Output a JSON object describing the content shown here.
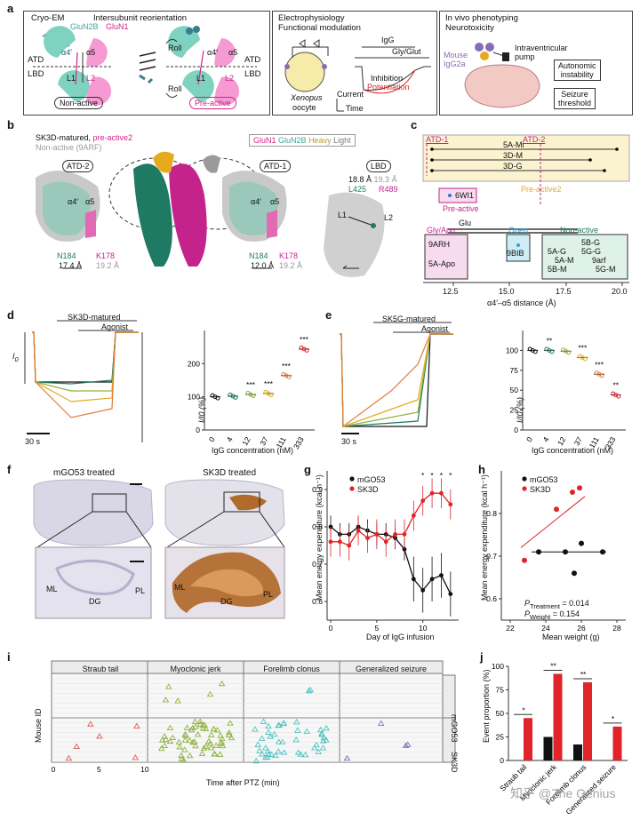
{
  "panel_labels": {
    "a": "a",
    "b": "b",
    "c": "c",
    "d": "d",
    "e": "e",
    "f": "f",
    "g": "g",
    "h": "h",
    "i": "i",
    "j": "j"
  },
  "panel_a": {
    "box1": {
      "title1": "Cryo-EM",
      "title2": "Intersubunit reorientation",
      "glun2b": "GluN2B",
      "glun1": "GluN1",
      "atd": "ATD",
      "lbd": "LBD",
      "alpha4": "α4′",
      "alpha5": "α5",
      "l1": "L1",
      "l2": "L2",
      "nonactive": "Non-active",
      "preactive": "Pre-active",
      "roll": "Roll"
    },
    "box2": {
      "title1": "Electrophysiology",
      "title2": "Functional modulation",
      "igg": "IgG",
      "glyglut": "Gly/Glut",
      "xenopus": "Xenopus",
      "oocyte": "oocyte",
      "inhibition": "Inhibition",
      "potentiation": "Potentiation",
      "current": "Current",
      "time": "Time"
    },
    "box3": {
      "title1": "In vivo phenotyping",
      "title2": "Neurotoxicity",
      "mouse": "Mouse",
      "igg2a": "IgG2a",
      "pump1": "Intraventricular",
      "pump2": "pump",
      "out1a": "Autonomic",
      "out1b": "instability",
      "out2a": "Seizure",
      "out2b": "threshold"
    }
  },
  "panel_b": {
    "legend1": "SK3D-matured,",
    "legend1b": "pre-active2",
    "legend2": "Non-active (9ARF)",
    "subunits": {
      "glun1": "GluN1",
      "glun2b": "GluN2B",
      "heavy": "Heavy",
      "light": "Light"
    },
    "atd2": "ATD-2",
    "atd1": "ATD-1",
    "lbd": "LBD",
    "alpha4": "α4′",
    "alpha5": "α5",
    "n184": "N184",
    "k178": "K178",
    "d1a": "17.4 Å",
    "d1b": "19.2 Å",
    "d2a": "12.0 Å",
    "d2b": "19.2 Å",
    "lbd_d1": "18.8 Å",
    "lbd_d2": "19.3 Å",
    "l425": "L425",
    "r489": "R489",
    "l1": "L1",
    "l2": "L2"
  },
  "panel_c": {
    "atd1": "ATD-1",
    "atd2": "ATD-2",
    "rows": [
      "5A-Mi",
      "3D-M",
      "3D-G"
    ],
    "wi1": "6WI1",
    "preactive": "Pre-active",
    "preactive2": "Pre-active2",
    "glu": "Glu",
    "glyapo": "Gly/Apo",
    "open": "Open",
    "nonactive": "Non-active",
    "arh": "9ARH",
    "aapo": "5A-Apo",
    "bib": "9BIB",
    "nonactive_list": [
      "5B-G",
      "5A-G",
      "5G-G",
      "5A-M",
      "9arf",
      "5B-M",
      "5G-M"
    ],
    "xlabel": "α4′–α5 distance (Å)",
    "xticks": [
      "12.5",
      "15.0",
      "17.5",
      "20.0"
    ]
  },
  "panel_d": {
    "legend1": "SK3D-matured",
    "legend2": "Agonist",
    "i0": "I",
    "i0sub": "0",
    "scale": "30 s"
  },
  "panel_e": {
    "legend1": "SK5G-matured",
    "legend2": "Agonist",
    "scale": "30 s"
  },
  "chart_data": [
    {
      "id": "d-plot",
      "type": "scatter",
      "ylabel": "I/I0 (%)",
      "xlabel": "IgG concentration (nM)",
      "categories": [
        "0",
        "4",
        "12",
        "37",
        "111",
        "333"
      ],
      "values": [
        100,
        102,
        107,
        110,
        164,
        244
      ],
      "ylim": [
        0,
        300
      ],
      "yticks": [
        0,
        100,
        200
      ],
      "significance": [
        "",
        "",
        "***",
        "***",
        "***",
        "***"
      ]
    },
    {
      "id": "e-plot",
      "type": "scatter",
      "ylabel": "I/I0 (%)",
      "xlabel": "IgG concentration (nM)",
      "categories": [
        "0",
        "4",
        "12",
        "37",
        "111",
        "333"
      ],
      "values": [
        100,
        100,
        99,
        91,
        70,
        44
      ],
      "ylim": [
        0,
        125
      ],
      "yticks": [
        0,
        25,
        50,
        75,
        100
      ],
      "significance": [
        "",
        "**",
        "",
        "***",
        "***",
        "**"
      ]
    },
    {
      "id": "g-plot",
      "type": "line",
      "xlabel": "Day of IgG infusion",
      "ylabel": "Mean energy expenditure (kcal h⁻¹)",
      "xticks": [
        0,
        5,
        10
      ],
      "ylim": [
        0.55,
        0.95
      ],
      "yticks": [
        0.6,
        0.7,
        0.8,
        0.9
      ],
      "series": [
        {
          "name": "mGO53",
          "x": [
            0,
            1,
            2,
            3,
            4,
            5,
            6,
            7,
            8,
            9,
            10,
            11,
            12,
            13
          ],
          "values": [
            0.8,
            0.78,
            0.78,
            0.8,
            0.79,
            0.78,
            0.78,
            0.77,
            0.74,
            0.66,
            0.63,
            0.66,
            0.67,
            0.62
          ]
        },
        {
          "name": "SK3D",
          "x": [
            0,
            1,
            2,
            3,
            4,
            5,
            6,
            7,
            8,
            9,
            10,
            11,
            12,
            13
          ],
          "values": [
            0.76,
            0.76,
            0.75,
            0.79,
            0.77,
            0.78,
            0.76,
            0.78,
            0.78,
            0.83,
            0.87,
            0.89,
            0.89,
            0.86
          ]
        }
      ],
      "stars": [
        10,
        11,
        12,
        13
      ]
    },
    {
      "id": "h-plot",
      "type": "scatter",
      "xlabel": "Mean weight (g)",
      "ylabel": "Mean energy expenditure (kcal h⁻¹)",
      "xticks": [
        22,
        24,
        26,
        28
      ],
      "ylim": [
        0.55,
        0.9
      ],
      "yticks": [
        0.6,
        0.7,
        0.8
      ],
      "series": [
        {
          "name": "mGO53",
          "x": [
            23.6,
            25.1,
            25.6,
            26.0,
            27.2
          ],
          "y": [
            0.71,
            0.71,
            0.66,
            0.73,
            0.71
          ]
        },
        {
          "name": "SK3D",
          "x": [
            22.8,
            24.6,
            25.5,
            25.9
          ],
          "y": [
            0.69,
            0.81,
            0.85,
            0.86
          ]
        }
      ],
      "stat1": "P",
      "stat1sub": "Treatment",
      "stat1val": " = 0.014",
      "stat2": "P",
      "stat2sub": "Weight",
      "stat2val": " = 0.154"
    },
    {
      "id": "j-plot",
      "type": "bar",
      "ylabel": "Event proportion (%)",
      "categories": [
        "Straub tail",
        "Myoclonic jerk",
        "Forelimb clonus",
        "Generalized seizure"
      ],
      "series": [
        {
          "name": "mGO53",
          "values": [
            0,
            25,
            17,
            0
          ]
        },
        {
          "name": "SK3D",
          "values": [
            45,
            92,
            83,
            36
          ]
        }
      ],
      "ylim": [
        0,
        100
      ],
      "yticks": [
        0,
        25,
        50,
        75,
        100
      ],
      "significance": [
        "*",
        "**",
        "**",
        "*"
      ]
    }
  ],
  "panel_f": {
    "left": "mGO53 treated",
    "right": "SK3D treated",
    "ml": "ML",
    "dg": "DG",
    "pl": "PL"
  },
  "panel_g": {
    "leg1": "mGO53",
    "leg2": "SK3D"
  },
  "panel_h": {
    "leg1": "mGO53",
    "leg2": "SK3D"
  },
  "panel_i": {
    "headers": [
      "Straub tail",
      "Myoclonic jerk",
      "Forelimb clonus",
      "Generalized seizure"
    ],
    "rows": [
      "mGO53",
      "SK3D"
    ],
    "ylabel": "Mouse ID",
    "xlabel": "Time after PTZ (min)",
    "xticks": [
      "0",
      "5",
      "10"
    ]
  },
  "watermark": "知乎 @Zhe Genius",
  "colors": {
    "magenta": "#d6218c",
    "teal": "#3fa896",
    "red": "#e0242a",
    "black": "#111111",
    "green": "#8db33b",
    "cyan": "#4cc5c0",
    "purple": "#8a6bb5",
    "salmon": "#e25b5b",
    "gold": "#e7a91e"
  }
}
